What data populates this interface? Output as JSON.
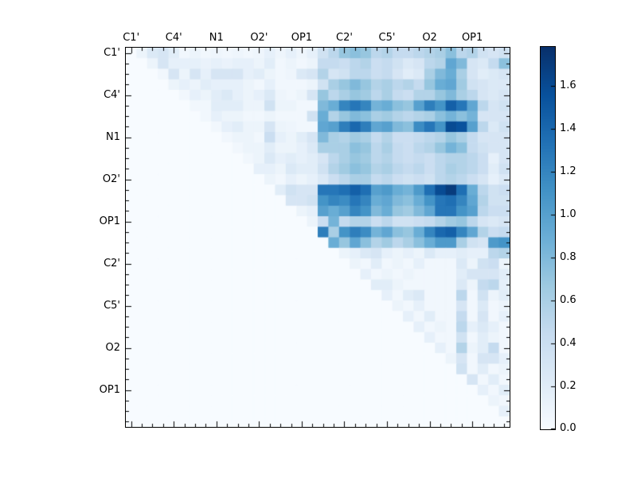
{
  "chart_data": {
    "type": "heatmap",
    "title": "",
    "colormap": "Blues",
    "vmin": 0.0,
    "vmax": 1.78,
    "n_cells": 36,
    "x_tick_labels": [
      "C1'",
      "C4'",
      "N1",
      "O2'",
      "OP1",
      "C2'",
      "C5'",
      "O2",
      "OP1"
    ],
    "y_tick_labels": [
      "C1'",
      "C4'",
      "N1",
      "O2'",
      "OP1",
      "C2'",
      "C5'",
      "O2",
      "OP1"
    ],
    "tick_positions": [
      0.5,
      4.5,
      8.5,
      12.5,
      16.5,
      20.5,
      24.5,
      28.5,
      32.5
    ],
    "grid": false,
    "legend_position": "right-colorbar",
    "colorbar": {
      "tick_labels": [
        "0.0",
        "0.2",
        "0.4",
        "0.6",
        "0.8",
        "1.0",
        "1.2",
        "1.4",
        "1.6"
      ],
      "tick_values": [
        0.0,
        0.2,
        0.4,
        0.6,
        0.8,
        1.0,
        1.2,
        1.4,
        1.6
      ]
    },
    "colors": {
      "background": "#ffffff",
      "frame": "#000000",
      "cmap_stops": [
        "#f7fbff",
        "#deebf7",
        "#c6dbef",
        "#9ecae1",
        "#6baed6",
        "#4292c6",
        "#2171b5",
        "#08519c",
        "#08306b"
      ]
    },
    "matrix": [
      [
        0,
        0.1,
        0.25,
        0.3,
        0.2,
        0.05,
        0.1,
        0.05,
        0.08,
        0.05,
        0.08,
        0.05,
        0.08,
        0.15,
        0.08,
        0.15,
        0.08,
        0.15,
        0.35,
        0.5,
        0.7,
        0.75,
        0.7,
        0.5,
        0.55,
        0.45,
        0.45,
        0.5,
        0.55,
        0.6,
        0.75,
        0.5,
        0.55,
        0.35,
        0.3,
        0.35
      ],
      [
        0,
        0,
        0.1,
        0.3,
        0.15,
        0.15,
        0.15,
        0.12,
        0.15,
        0.12,
        0.15,
        0.15,
        0.1,
        0.2,
        0.05,
        0.1,
        0.05,
        0.1,
        0.45,
        0.45,
        0.4,
        0.5,
        0.55,
        0.4,
        0.45,
        0.35,
        0.25,
        0.3,
        0.5,
        0.55,
        0.95,
        0.8,
        0.3,
        0.25,
        0.45,
        0.75
      ],
      [
        0,
        0,
        0,
        0.05,
        0.3,
        0.1,
        0.3,
        0.15,
        0.3,
        0.3,
        0.3,
        0.15,
        0.2,
        0.1,
        0.05,
        0.08,
        0.25,
        0.3,
        0.55,
        0.3,
        0.35,
        0.5,
        0.5,
        0.4,
        0.45,
        0.3,
        0.2,
        0.25,
        0.6,
        0.8,
        0.9,
        0.6,
        0.3,
        0.2,
        0.25,
        0.3
      ],
      [
        0,
        0,
        0,
        0,
        0.1,
        0.15,
        0.1,
        0.2,
        0.15,
        0.15,
        0.15,
        0.1,
        0.05,
        0.15,
        0.05,
        0.05,
        0.05,
        0.1,
        0.35,
        0.6,
        0.7,
        0.8,
        0.7,
        0.55,
        0.6,
        0.5,
        0.55,
        0.45,
        0.7,
        0.9,
        0.95,
        0.65,
        0.35,
        0.3,
        0.25,
        0.25
      ],
      [
        0,
        0,
        0,
        0,
        0,
        0.05,
        0.15,
        0.1,
        0.2,
        0.25,
        0.15,
        0.1,
        0.15,
        0.25,
        0.08,
        0.05,
        0.1,
        0.3,
        0.7,
        0.5,
        0.6,
        0.7,
        0.65,
        0.5,
        0.6,
        0.45,
        0.4,
        0.55,
        0.55,
        0.7,
        0.8,
        0.6,
        0.5,
        0.3,
        0.25,
        0.3
      ],
      [
        0,
        0,
        0,
        0,
        0,
        0,
        0.05,
        0.05,
        0.2,
        0.2,
        0.2,
        0.1,
        0.1,
        0.35,
        0.1,
        0.1,
        0.05,
        0.05,
        0.8,
        0.9,
        1.2,
        1.3,
        1.2,
        0.85,
        0.9,
        0.75,
        0.7,
        1.0,
        1.25,
        1.1,
        1.45,
        1.3,
        0.95,
        0.5,
        0.3,
        0.35
      ],
      [
        0,
        0,
        0,
        0,
        0,
        0,
        0,
        0.05,
        0.15,
        0.1,
        0.1,
        0.05,
        0.05,
        0.1,
        0.05,
        0.05,
        0.05,
        0.35,
        0.9,
        0.55,
        0.7,
        0.8,
        0.75,
        0.6,
        0.65,
        0.55,
        0.5,
        0.55,
        0.6,
        0.75,
        0.85,
        0.75,
        0.85,
        0.3,
        0.3,
        0.3
      ],
      [
        0,
        0,
        0,
        0,
        0,
        0,
        0,
        0,
        0.05,
        0.15,
        0.2,
        0.1,
        0.1,
        0.3,
        0.1,
        0.08,
        0.05,
        0.05,
        0.95,
        1.0,
        1.25,
        1.4,
        1.25,
        0.95,
        1.0,
        0.8,
        0.75,
        1.15,
        1.3,
        1.1,
        1.6,
        1.55,
        1.0,
        0.5,
        0.25,
        0.35
      ],
      [
        0,
        0,
        0,
        0,
        0,
        0,
        0,
        0,
        0,
        0.05,
        0.1,
        0.1,
        0.05,
        0.4,
        0.15,
        0.1,
        0.2,
        0.3,
        0.8,
        0.6,
        0.55,
        0.65,
        0.6,
        0.45,
        0.55,
        0.4,
        0.4,
        0.45,
        0.5,
        0.55,
        0.7,
        0.6,
        0.45,
        0.3,
        0.3,
        0.3
      ],
      [
        0,
        0,
        0,
        0,
        0,
        0,
        0,
        0,
        0,
        0,
        0.05,
        0.1,
        0.1,
        0.2,
        0.1,
        0.1,
        0.15,
        0.25,
        0.6,
        0.6,
        0.6,
        0.75,
        0.7,
        0.5,
        0.6,
        0.45,
        0.4,
        0.5,
        0.55,
        0.7,
        0.85,
        0.75,
        0.45,
        0.35,
        0.3,
        0.3
      ],
      [
        0,
        0,
        0,
        0,
        0,
        0,
        0,
        0,
        0,
        0,
        0,
        0.05,
        0.1,
        0.25,
        0.15,
        0.2,
        0.15,
        0.2,
        0.3,
        0.5,
        0.6,
        0.7,
        0.65,
        0.5,
        0.55,
        0.45,
        0.4,
        0.45,
        0.4,
        0.5,
        0.55,
        0.55,
        0.5,
        0.4,
        0.15,
        0.3
      ],
      [
        0,
        0,
        0,
        0,
        0,
        0,
        0,
        0,
        0,
        0,
        0,
        0,
        0.15,
        0.15,
        0.1,
        0.25,
        0.2,
        0.2,
        0.35,
        0.55,
        0.65,
        0.75,
        0.7,
        0.55,
        0.6,
        0.5,
        0.45,
        0.5,
        0.4,
        0.5,
        0.6,
        0.55,
        0.5,
        0.4,
        0.2,
        0.35
      ],
      [
        0,
        0,
        0,
        0,
        0,
        0,
        0,
        0,
        0,
        0,
        0,
        0,
        0,
        0.1,
        0.05,
        0.15,
        0.1,
        0.15,
        0.25,
        0.4,
        0.5,
        0.6,
        0.6,
        0.45,
        0.5,
        0.4,
        0.35,
        0.4,
        0.35,
        0.5,
        0.55,
        0.5,
        0.4,
        0.3,
        0.15,
        0.25
      ],
      [
        0,
        0,
        0,
        0,
        0,
        0,
        0,
        0,
        0,
        0,
        0,
        0,
        0,
        0,
        0.2,
        0.35,
        0.3,
        0.3,
        1.3,
        1.3,
        1.35,
        1.45,
        1.35,
        1.0,
        1.05,
        0.9,
        0.85,
        1.05,
        1.35,
        1.6,
        1.7,
        1.35,
        0.9,
        0.5,
        0.35,
        0.4
      ],
      [
        0,
        0,
        0,
        0,
        0,
        0,
        0,
        0,
        0,
        0,
        0,
        0,
        0,
        0,
        0,
        0.3,
        0.3,
        0.35,
        1.1,
        1.2,
        1.15,
        1.3,
        1.2,
        0.9,
        0.95,
        0.8,
        0.75,
        0.9,
        1.1,
        1.3,
        1.35,
        1.2,
        0.95,
        0.55,
        0.35,
        0.35
      ],
      [
        0,
        0,
        0,
        0,
        0,
        0,
        0,
        0,
        0,
        0,
        0,
        0,
        0,
        0,
        0,
        0,
        0.1,
        0.15,
        1.0,
        0.9,
        1.0,
        1.2,
        1.1,
        0.8,
        0.9,
        0.7,
        0.65,
        0.8,
        0.95,
        1.3,
        1.3,
        1.1,
        1.0,
        0.5,
        0.4,
        0.4
      ],
      [
        0,
        0,
        0,
        0,
        0,
        0,
        0,
        0,
        0,
        0,
        0,
        0,
        0,
        0,
        0,
        0,
        0,
        0.1,
        0.4,
        0.85,
        0.45,
        0.55,
        0.55,
        0.4,
        0.5,
        0.35,
        0.35,
        0.4,
        0.45,
        0.55,
        0.65,
        0.7,
        0.5,
        0.3,
        0.25,
        0.3
      ],
      [
        0,
        0,
        0,
        0,
        0,
        0,
        0,
        0,
        0,
        0,
        0,
        0,
        0,
        0,
        0,
        0,
        0,
        0,
        1.25,
        0.6,
        1.1,
        1.25,
        1.15,
        0.85,
        0.95,
        0.75,
        0.7,
        0.9,
        1.2,
        1.4,
        1.45,
        1.2,
        0.95,
        0.55,
        0.4,
        0.45
      ],
      [
        0,
        0,
        0,
        0,
        0,
        0,
        0,
        0,
        0,
        0,
        0,
        0,
        0,
        0,
        0,
        0,
        0,
        0,
        0,
        0.9,
        0.7,
        0.95,
        0.75,
        0.55,
        0.65,
        0.5,
        0.6,
        0.75,
        0.9,
        1.05,
        1.05,
        0.6,
        0.35,
        0.3,
        1.05,
        1.1
      ],
      [
        0,
        0,
        0,
        0,
        0,
        0,
        0,
        0,
        0,
        0,
        0,
        0,
        0,
        0,
        0,
        0,
        0,
        0,
        0,
        0,
        0.1,
        0.15,
        0.25,
        0.3,
        0.15,
        0.1,
        0.15,
        0.1,
        0.25,
        0.15,
        0.15,
        0.2,
        0.15,
        0.15,
        0.5,
        0.55
      ],
      [
        0,
        0,
        0,
        0,
        0,
        0,
        0,
        0,
        0,
        0,
        0,
        0,
        0,
        0,
        0,
        0,
        0,
        0,
        0,
        0,
        0,
        0.1,
        0.05,
        0.2,
        0.05,
        0.1,
        0.05,
        0.15,
        0.05,
        0.05,
        0.05,
        0.25,
        0.1,
        0.35,
        0.4,
        0.1
      ],
      [
        0,
        0,
        0,
        0,
        0,
        0,
        0,
        0,
        0,
        0,
        0,
        0,
        0,
        0,
        0,
        0,
        0,
        0,
        0,
        0,
        0,
        0,
        0.15,
        0.05,
        0.1,
        0.05,
        0.1,
        0.05,
        0.05,
        0.05,
        0.05,
        0.2,
        0.3,
        0.3,
        0.3,
        0.2
      ],
      [
        0,
        0,
        0,
        0,
        0,
        0,
        0,
        0,
        0,
        0,
        0,
        0,
        0,
        0,
        0,
        0,
        0,
        0,
        0,
        0,
        0,
        0,
        0,
        0.2,
        0.2,
        0.1,
        0.05,
        0.05,
        0.05,
        0.05,
        0.05,
        0.25,
        0.1,
        0.45,
        0.5,
        0.15
      ],
      [
        0,
        0,
        0,
        0,
        0,
        0,
        0,
        0,
        0,
        0,
        0,
        0,
        0,
        0,
        0,
        0,
        0,
        0,
        0,
        0,
        0,
        0,
        0,
        0,
        0.15,
        0.05,
        0.2,
        0.25,
        0.05,
        0.05,
        0.05,
        0.5,
        0.05,
        0.35,
        0.1,
        0.2
      ],
      [
        0,
        0,
        0,
        0,
        0,
        0,
        0,
        0,
        0,
        0,
        0,
        0,
        0,
        0,
        0,
        0,
        0,
        0,
        0,
        0,
        0,
        0,
        0,
        0,
        0,
        0.1,
        0.05,
        0.15,
        0.05,
        0.05,
        0.05,
        0.3,
        0.05,
        0.25,
        0.05,
        0.1
      ],
      [
        0,
        0,
        0,
        0,
        0,
        0,
        0,
        0,
        0,
        0,
        0,
        0,
        0,
        0,
        0,
        0,
        0,
        0,
        0,
        0,
        0,
        0,
        0,
        0,
        0,
        0,
        0.15,
        0.05,
        0.2,
        0.05,
        0.05,
        0.45,
        0.05,
        0.3,
        0.05,
        0.15
      ],
      [
        0,
        0,
        0,
        0,
        0,
        0,
        0,
        0,
        0,
        0,
        0,
        0,
        0,
        0,
        0,
        0,
        0,
        0,
        0,
        0,
        0,
        0,
        0,
        0,
        0,
        0,
        0,
        0.15,
        0.05,
        0.1,
        0.05,
        0.5,
        0.15,
        0.25,
        0.15,
        0.05
      ],
      [
        0,
        0,
        0,
        0,
        0,
        0,
        0,
        0,
        0,
        0,
        0,
        0,
        0,
        0,
        0,
        0,
        0,
        0,
        0,
        0,
        0,
        0,
        0,
        0,
        0,
        0,
        0,
        0,
        0.15,
        0.05,
        0.05,
        0.35,
        0.05,
        0.2,
        0.1,
        0.05
      ],
      [
        0,
        0,
        0,
        0,
        0,
        0,
        0,
        0,
        0,
        0,
        0,
        0,
        0,
        0,
        0,
        0,
        0,
        0,
        0,
        0,
        0,
        0,
        0,
        0,
        0,
        0,
        0,
        0,
        0,
        0.15,
        0.05,
        0.55,
        0.1,
        0.2,
        0.45,
        0.05
      ],
      [
        0,
        0,
        0,
        0,
        0,
        0,
        0,
        0,
        0,
        0,
        0,
        0,
        0,
        0,
        0,
        0,
        0,
        0,
        0,
        0,
        0,
        0,
        0,
        0,
        0,
        0,
        0,
        0,
        0,
        0,
        0.1,
        0.3,
        0.05,
        0.3,
        0.3,
        0.15
      ],
      [
        0,
        0,
        0,
        0,
        0,
        0,
        0,
        0,
        0,
        0,
        0,
        0,
        0,
        0,
        0,
        0,
        0,
        0,
        0,
        0,
        0,
        0,
        0,
        0,
        0,
        0,
        0,
        0,
        0,
        0,
        0,
        0.35,
        0.05,
        0.2,
        0.05,
        0.1
      ],
      [
        0,
        0,
        0,
        0,
        0,
        0,
        0,
        0,
        0,
        0,
        0,
        0,
        0,
        0,
        0,
        0,
        0,
        0,
        0,
        0,
        0,
        0,
        0,
        0,
        0,
        0,
        0,
        0,
        0,
        0,
        0,
        0,
        0.3,
        0.05,
        0.2,
        0.05
      ],
      [
        0,
        0,
        0,
        0,
        0,
        0,
        0,
        0,
        0,
        0,
        0,
        0,
        0,
        0,
        0,
        0,
        0,
        0,
        0,
        0,
        0,
        0,
        0,
        0,
        0,
        0,
        0,
        0,
        0,
        0,
        0,
        0,
        0,
        0.15,
        0.05,
        0.2
      ],
      [
        0,
        0,
        0,
        0,
        0,
        0,
        0,
        0,
        0,
        0,
        0,
        0,
        0,
        0,
        0,
        0,
        0,
        0,
        0,
        0,
        0,
        0,
        0,
        0,
        0,
        0,
        0,
        0,
        0,
        0,
        0,
        0,
        0,
        0,
        0.1,
        0.05
      ],
      [
        0,
        0,
        0,
        0,
        0,
        0,
        0,
        0,
        0,
        0,
        0,
        0,
        0,
        0,
        0,
        0,
        0,
        0,
        0,
        0,
        0,
        0,
        0,
        0,
        0,
        0,
        0,
        0,
        0,
        0,
        0,
        0,
        0,
        0,
        0,
        0.15
      ],
      [
        0,
        0,
        0,
        0,
        0,
        0,
        0,
        0,
        0,
        0,
        0,
        0,
        0,
        0,
        0,
        0,
        0,
        0,
        0,
        0,
        0,
        0,
        0,
        0,
        0,
        0,
        0,
        0,
        0,
        0,
        0,
        0,
        0,
        0,
        0,
        0
      ]
    ]
  }
}
